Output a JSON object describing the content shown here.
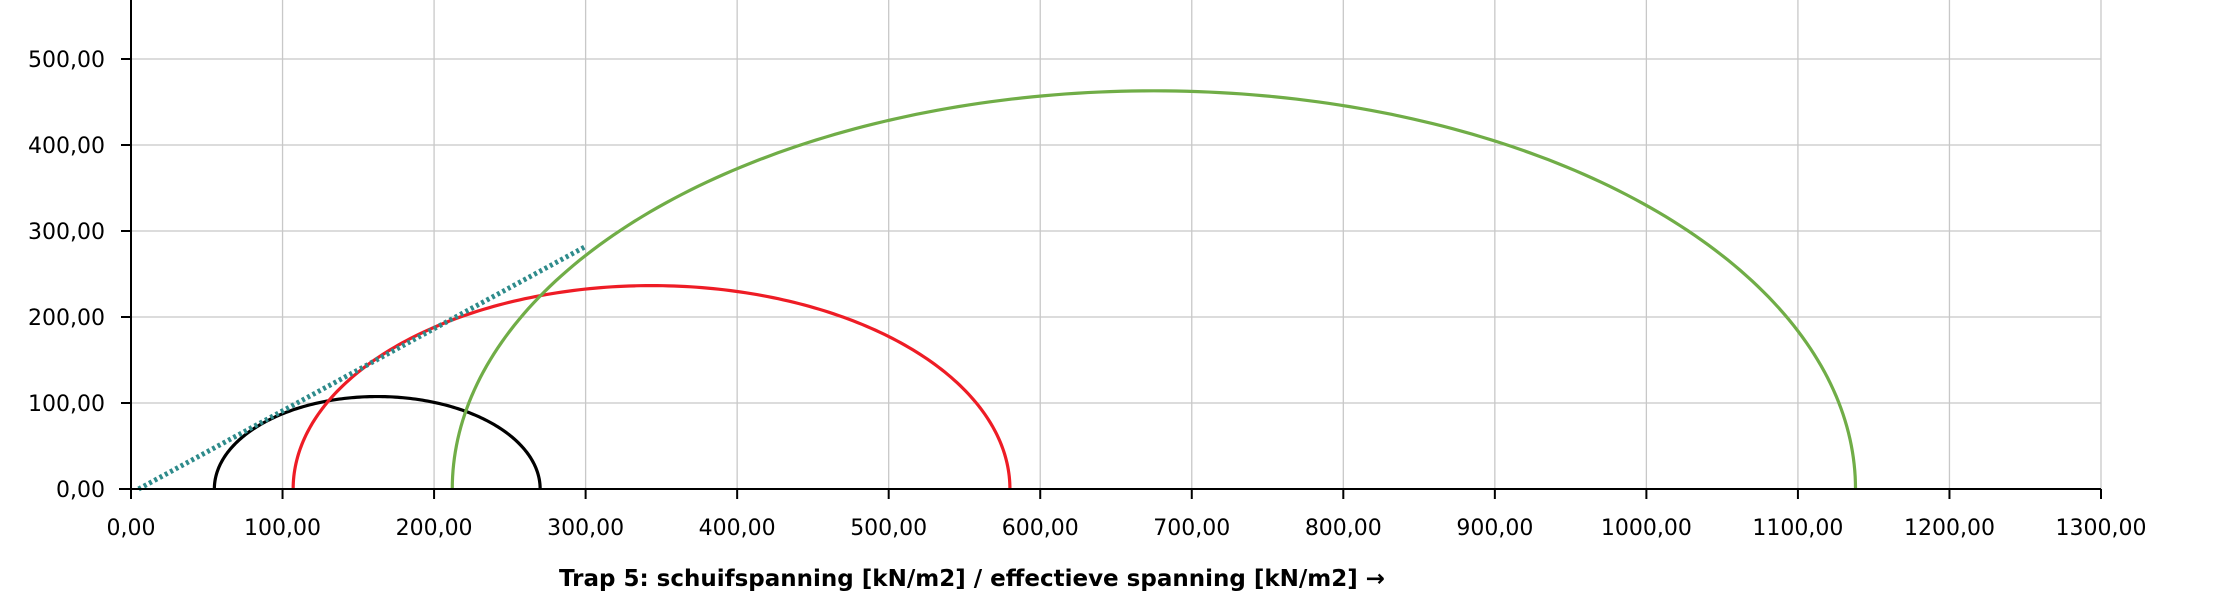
{
  "chart_data": {
    "type": "line",
    "title": "",
    "xlabel": "Trap 5: schuifspanning [kN/m2] / effectieve spanning [kN/m2] →",
    "ylabel": "",
    "xlim": [
      0,
      1300
    ],
    "ylim": [
      0,
      500
    ],
    "grid": true,
    "x_ticks": [
      0,
      100,
      200,
      300,
      400,
      500,
      600,
      700,
      800,
      900,
      1000,
      1100,
      1200,
      1300
    ],
    "y_ticks": [
      0,
      100,
      200,
      300,
      400,
      500
    ],
    "x_tick_labels": [
      "0,00",
      "100,00",
      "200,00",
      "300,00",
      "400,00",
      "500,00",
      "600,00",
      "700,00",
      "800,00",
      "900,00",
      "1000,00",
      "1100,00",
      "1200,00",
      "1300,00"
    ],
    "y_tick_labels": [
      "0,00",
      "100,00",
      "200,00",
      "300,00",
      "400,00",
      "500,00"
    ],
    "mohr_circles": [
      {
        "sigma_min": 55,
        "sigma_max": 270,
        "color": "#000000"
      },
      {
        "sigma_min": 107,
        "sigma_max": 580,
        "color": "#ee1c25"
      },
      {
        "sigma_min": 212,
        "sigma_max": 1138,
        "color": "#70ad47"
      }
    ],
    "failure_envelope": {
      "x": [
        5,
        300
      ],
      "y": [
        0,
        282
      ],
      "color": "#2e8b8b",
      "style": "dotted"
    }
  }
}
